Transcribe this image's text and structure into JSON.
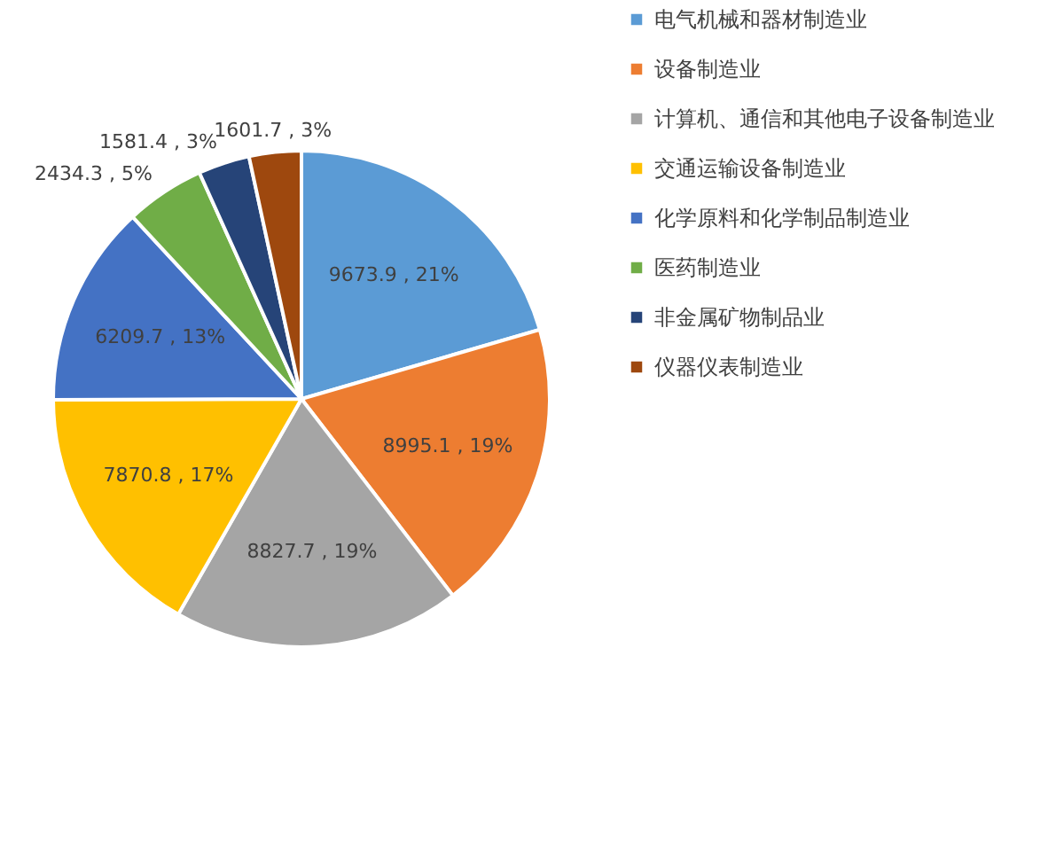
{
  "chart_data": {
    "type": "pie",
    "categories": [
      "电气机械和器材制造业",
      "设备制造业",
      "计算机、通信和其他电子设备制造业",
      "交通运输设备制造业",
      "化学原料和化学制品制造业",
      "医药制造业",
      "非金属矿物制品业",
      "仪器仪表制造业"
    ],
    "values": [
      9673.9,
      8995.1,
      8827.7,
      7870.8,
      6209.7,
      2434.3,
      1581.4,
      1601.7
    ],
    "colors": [
      "#5b9bd5",
      "#ed7d31",
      "#a5a5a5",
      "#ffc000",
      "#4472c4",
      "#70ad47",
      "#264478",
      "#9e480e"
    ],
    "value_labels": [
      "9673.9 , 21%",
      "8995.1 , 19%",
      "8827.7 , 19%",
      "7870.8 , 17%",
      "6209.7 , 13%",
      "2434.3 , 5%",
      "1581.4 , 3%",
      "1601.7 , 3%"
    ],
    "legend": "right"
  }
}
